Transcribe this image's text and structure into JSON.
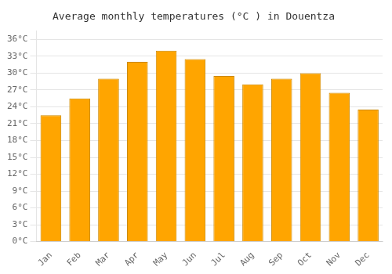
{
  "chart_data": {
    "type": "bar",
    "title": "Average monthly temperatures (°C ) in Douentza",
    "categories": [
      "Jan",
      "Feb",
      "Mar",
      "Apr",
      "May",
      "Jun",
      "Jul",
      "Aug",
      "Sep",
      "Oct",
      "Nov",
      "Dec"
    ],
    "values": [
      22.5,
      25.5,
      29.0,
      32.0,
      34.0,
      32.5,
      29.5,
      28.0,
      29.0,
      30.0,
      26.5,
      23.5
    ],
    "color": "#FFA500",
    "ylim": [
      0,
      37.5
    ],
    "yticks": [
      {
        "value": 0,
        "label": "0°C"
      },
      {
        "value": 3,
        "label": "3°C"
      },
      {
        "value": 6,
        "label": "6°C"
      },
      {
        "value": 9,
        "label": "9°C"
      },
      {
        "value": 12,
        "label": "12°C"
      },
      {
        "value": 15,
        "label": "15°C"
      },
      {
        "value": 18,
        "label": "18°C"
      },
      {
        "value": 21,
        "label": "21°C"
      },
      {
        "value": 24,
        "label": "24°C"
      },
      {
        "value": 27,
        "label": "27°C"
      },
      {
        "value": 30,
        "label": "30°C"
      },
      {
        "value": 33,
        "label": "33°C"
      },
      {
        "value": 36,
        "label": "36°C"
      }
    ],
    "grid": true
  }
}
